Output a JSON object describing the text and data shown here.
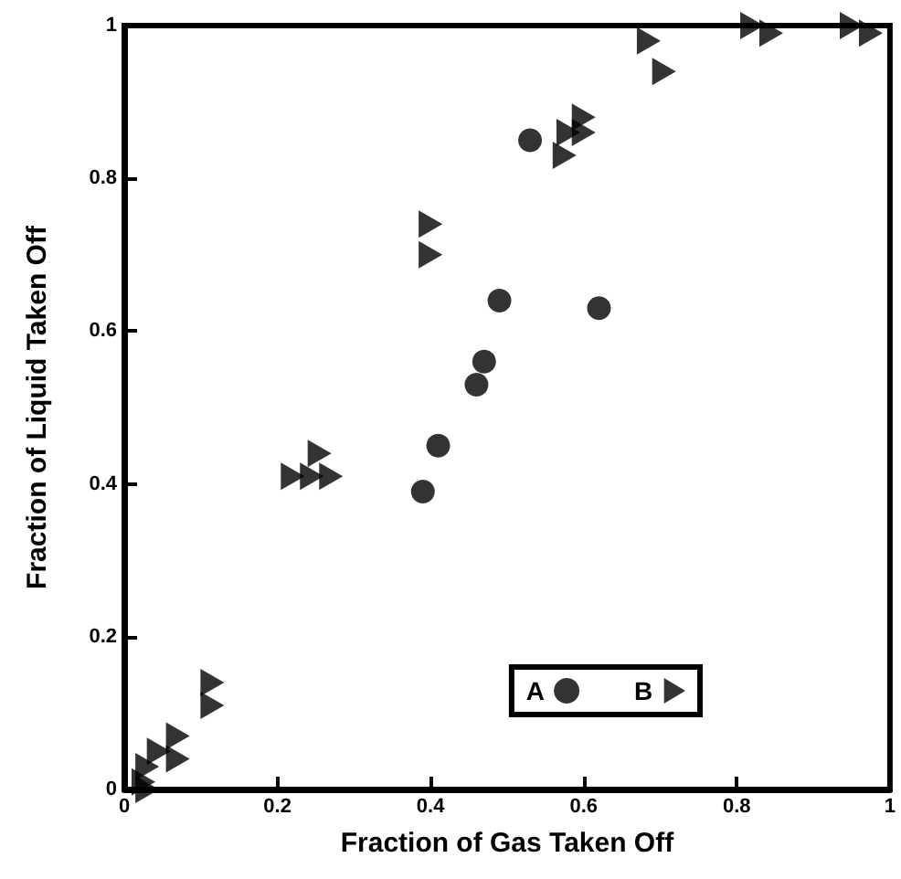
{
  "chart_data": {
    "type": "scatter",
    "xlabel": "Fraction of Gas Taken Off",
    "ylabel": "Fraction of Liquid Taken Off",
    "xlim": [
      0,
      1
    ],
    "ylim": [
      0,
      1
    ],
    "xticks": [
      0,
      0.2,
      0.4,
      0.6,
      0.8,
      1
    ],
    "yticks": [
      0,
      0.2,
      0.4,
      0.6,
      0.8,
      1
    ],
    "grid": false,
    "legend": "bottom right",
    "series": [
      {
        "name": "A",
        "color": "#000000",
        "marker": "circle",
        "x": [
          0.39,
          0.41,
          0.46,
          0.47,
          0.49,
          0.53,
          0.62
        ],
        "values": [
          0.39,
          0.45,
          0.53,
          0.56,
          0.64,
          0.85,
          0.63
        ]
      },
      {
        "name": "B",
        "color": "#000000",
        "marker": "triangle",
        "x": [
          0.03,
          0.025,
          0.03,
          0.045,
          0.07,
          0.07,
          0.115,
          0.115,
          0.22,
          0.245,
          0.27,
          0.255,
          0.4,
          0.4,
          0.575,
          0.58,
          0.6,
          0.6,
          0.685,
          0.705,
          0.82,
          0.845,
          0.95,
          0.975
        ],
        "values": [
          0,
          0.01,
          0.03,
          0.05,
          0.04,
          0.07,
          0.11,
          0.14,
          0.41,
          0.41,
          0.41,
          0.44,
          0.7,
          0.74,
          0.83,
          0.86,
          0.86,
          0.88,
          0.98,
          0.94,
          1,
          0.99,
          1,
          0.99
        ]
      }
    ]
  }
}
